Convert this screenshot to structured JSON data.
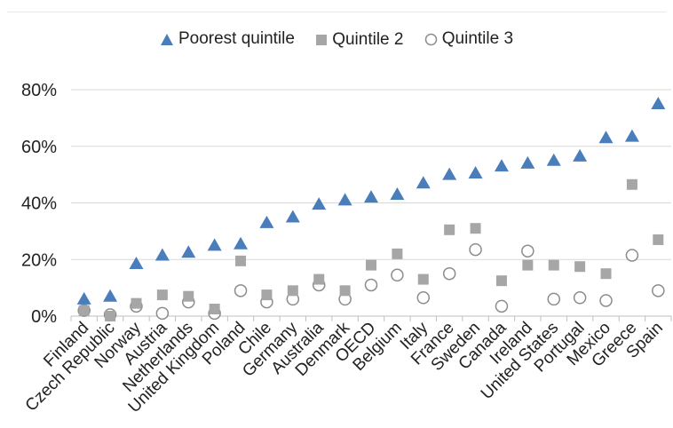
{
  "chart_data": {
    "type": "scatter",
    "categories": [
      "Finland",
      "Czech Republic",
      "Norway",
      "Austria",
      "Netherlands",
      "United Kingdom",
      "Poland",
      "Chile",
      "Germany",
      "Australia",
      "Denmark",
      "OECD",
      "Belgium",
      "Italy",
      "France",
      "Sweden",
      "Canada",
      "Ireland",
      "United States",
      "Portugal",
      "Mexico",
      "Greece",
      "Spain"
    ],
    "series": [
      {
        "name": "Poorest quintile",
        "marker": "triangle",
        "color": "#4a7ebb",
        "values": [
          6,
          7,
          18.5,
          21.5,
          22.5,
          25,
          25.5,
          33,
          35,
          39.5,
          41,
          42,
          43,
          47,
          50,
          50.5,
          53,
          54,
          55,
          56.5,
          63,
          63.5,
          75
        ]
      },
      {
        "name": "Quintile 2",
        "marker": "square",
        "color": "#a6a6a6",
        "values": [
          2,
          0,
          4.5,
          7.5,
          7,
          2.5,
          19.5,
          7.5,
          9,
          13,
          9,
          18,
          22,
          13,
          30.5,
          31,
          12.5,
          18,
          18,
          17.5,
          15,
          46.5,
          27
        ]
      },
      {
        "name": "Quintile 3",
        "marker": "circle",
        "color": "#8c8c8c",
        "values": [
          2,
          0.5,
          3.5,
          1,
          5,
          1,
          9,
          5,
          6,
          11,
          6,
          11,
          14.5,
          6.5,
          15,
          23.5,
          3.5,
          23,
          6,
          6.5,
          5.5,
          21.5,
          9
        ]
      }
    ],
    "yticks": [
      "0%",
      "20%",
      "40%",
      "60%",
      "80%"
    ],
    "ylim": [
      0,
      80
    ],
    "grid": true,
    "legend_position": "top"
  }
}
